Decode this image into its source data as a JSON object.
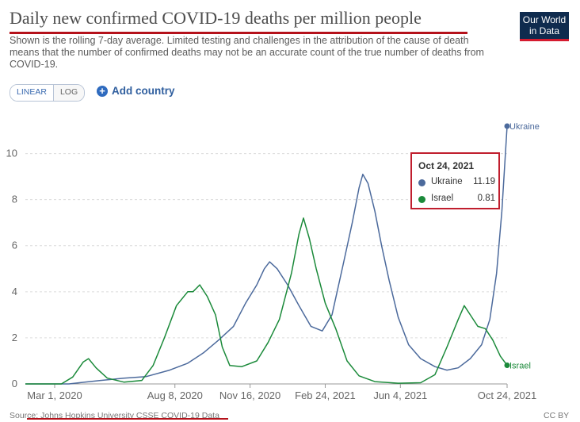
{
  "header": {
    "title": "Daily new confirmed COVID-19 deaths per million people",
    "subtitle": "Shown is the rolling 7-day average. Limited testing and challenges in the attribution of the cause of death means that the number of confirmed deaths may not be an accurate count of the true number of deaths from COVID-19.",
    "logo_line1": "Our World",
    "logo_line2": "in Data"
  },
  "controls": {
    "linear_label": "LINEAR",
    "log_label": "LOG",
    "add_country_label": "Add country"
  },
  "tooltip": {
    "date": "Oct 24, 2021",
    "rows": [
      {
        "name": "Ukraine",
        "value": "11.19",
        "color": "#4c6a9c"
      },
      {
        "name": "Israel",
        "value": "0.81",
        "color": "#1b8a3a"
      }
    ]
  },
  "footer": {
    "source": "Source: Johns Hopkins University CSSE COVID-19 Data",
    "license": "CC BY"
  },
  "colors": {
    "ukraine": "#4c6a9c",
    "israel": "#1b8a3a",
    "grid": "#dcdcdc",
    "accent": "#b5121b"
  },
  "chart_data": {
    "type": "line",
    "title": "Daily new confirmed COVID-19 deaths per million people",
    "xlabel": "",
    "ylabel": "",
    "x_type": "date",
    "xlim": [
      "2020-01-22",
      "2021-10-24"
    ],
    "ylim": [
      0,
      11.5
    ],
    "y_ticks": [
      0,
      2,
      4,
      6,
      8,
      10
    ],
    "x_ticks": [
      {
        "date": "2020-03-01",
        "label": "Mar 1, 2020"
      },
      {
        "date": "2020-08-08",
        "label": "Aug 8, 2020"
      },
      {
        "date": "2020-11-16",
        "label": "Nov 16, 2020"
      },
      {
        "date": "2021-02-24",
        "label": "Feb 24, 2021"
      },
      {
        "date": "2021-06-04",
        "label": "Jun 4, 2021"
      },
      {
        "date": "2021-10-24",
        "label": "Oct 24, 2021"
      }
    ],
    "grid": true,
    "legend": "end-labels",
    "series": [
      {
        "name": "Ukraine",
        "color": "#4c6a9c",
        "points": [
          [
            "2020-01-22",
            0
          ],
          [
            "2020-03-20",
            0
          ],
          [
            "2020-04-10",
            0.08
          ],
          [
            "2020-05-01",
            0.15
          ],
          [
            "2020-06-01",
            0.25
          ],
          [
            "2020-07-01",
            0.32
          ],
          [
            "2020-08-01",
            0.6
          ],
          [
            "2020-08-25",
            0.9
          ],
          [
            "2020-09-15",
            1.35
          ],
          [
            "2020-10-05",
            1.9
          ],
          [
            "2020-10-25",
            2.5
          ],
          [
            "2020-11-10",
            3.5
          ],
          [
            "2020-11-25",
            4.3
          ],
          [
            "2020-12-05",
            5.0
          ],
          [
            "2020-12-12",
            5.3
          ],
          [
            "2020-12-22",
            5.0
          ],
          [
            "2021-01-05",
            4.3
          ],
          [
            "2021-01-20",
            3.4
          ],
          [
            "2021-02-05",
            2.5
          ],
          [
            "2021-02-20",
            2.3
          ],
          [
            "2021-03-05",
            3.0
          ],
          [
            "2021-03-20",
            5.2
          ],
          [
            "2021-04-01",
            7.0
          ],
          [
            "2021-04-10",
            8.5
          ],
          [
            "2021-04-15",
            9.1
          ],
          [
            "2021-04-22",
            8.7
          ],
          [
            "2021-05-01",
            7.5
          ],
          [
            "2021-05-10",
            6.0
          ],
          [
            "2021-05-20",
            4.5
          ],
          [
            "2021-06-01",
            2.9
          ],
          [
            "2021-06-15",
            1.7
          ],
          [
            "2021-07-01",
            1.1
          ],
          [
            "2021-07-20",
            0.75
          ],
          [
            "2021-08-05",
            0.6
          ],
          [
            "2021-08-20",
            0.7
          ],
          [
            "2021-09-05",
            1.1
          ],
          [
            "2021-09-20",
            1.7
          ],
          [
            "2021-10-01",
            2.8
          ],
          [
            "2021-10-10",
            4.8
          ],
          [
            "2021-10-17",
            7.5
          ],
          [
            "2021-10-24",
            11.19
          ]
        ]
      },
      {
        "name": "Israel",
        "color": "#1b8a3a",
        "points": [
          [
            "2020-01-22",
            0
          ],
          [
            "2020-03-10",
            0
          ],
          [
            "2020-03-25",
            0.3
          ],
          [
            "2020-04-08",
            0.95
          ],
          [
            "2020-04-15",
            1.1
          ],
          [
            "2020-04-25",
            0.7
          ],
          [
            "2020-05-10",
            0.25
          ],
          [
            "2020-06-01",
            0.08
          ],
          [
            "2020-06-25",
            0.15
          ],
          [
            "2020-07-10",
            0.8
          ],
          [
            "2020-07-25",
            2.0
          ],
          [
            "2020-08-10",
            3.4
          ],
          [
            "2020-08-25",
            4.0
          ],
          [
            "2020-09-01",
            4.0
          ],
          [
            "2020-09-10",
            4.3
          ],
          [
            "2020-09-20",
            3.8
          ],
          [
            "2020-10-01",
            3.0
          ],
          [
            "2020-10-10",
            1.6
          ],
          [
            "2020-10-20",
            0.8
          ],
          [
            "2020-11-05",
            0.75
          ],
          [
            "2020-11-25",
            1.0
          ],
          [
            "2020-12-10",
            1.8
          ],
          [
            "2020-12-25",
            2.8
          ],
          [
            "2021-01-10",
            4.8
          ],
          [
            "2021-01-20",
            6.5
          ],
          [
            "2021-01-26",
            7.2
          ],
          [
            "2021-02-03",
            6.3
          ],
          [
            "2021-02-12",
            5.0
          ],
          [
            "2021-02-24",
            3.5
          ],
          [
            "2021-03-10",
            2.4
          ],
          [
            "2021-03-25",
            1.0
          ],
          [
            "2021-04-10",
            0.35
          ],
          [
            "2021-05-01",
            0.1
          ],
          [
            "2021-06-01",
            0.03
          ],
          [
            "2021-07-01",
            0.05
          ],
          [
            "2021-07-20",
            0.4
          ],
          [
            "2021-08-05",
            1.6
          ],
          [
            "2021-08-20",
            2.8
          ],
          [
            "2021-08-28",
            3.4
          ],
          [
            "2021-09-05",
            3.0
          ],
          [
            "2021-09-15",
            2.5
          ],
          [
            "2021-09-25",
            2.4
          ],
          [
            "2021-10-05",
            1.9
          ],
          [
            "2021-10-15",
            1.2
          ],
          [
            "2021-10-24",
            0.81
          ]
        ]
      }
    ]
  }
}
